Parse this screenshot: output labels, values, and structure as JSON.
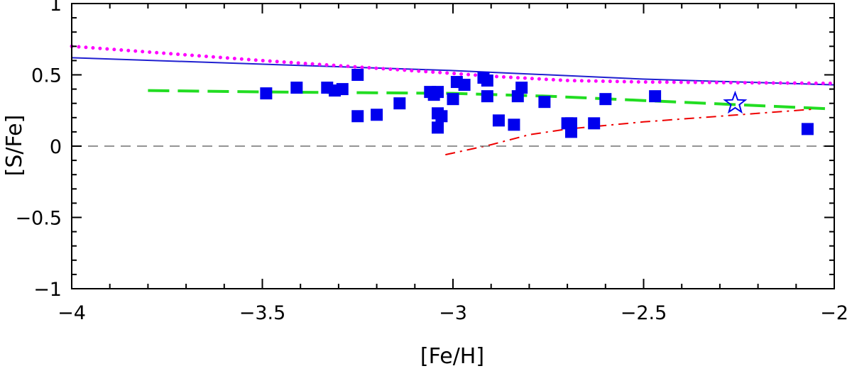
{
  "chart_data": {
    "type": "scatter",
    "title": "",
    "xlabel": "[Fe/H]",
    "ylabel": "[S/Fe]",
    "xlim": [
      -4,
      -2
    ],
    "ylim": [
      -1,
      1
    ],
    "x_ticks": [
      -4,
      -3.5,
      -3,
      -2.5,
      -2
    ],
    "x_tick_labels": [
      "−4",
      "−3.5",
      "−3",
      "−2.5",
      "−2"
    ],
    "y_ticks": [
      -1,
      -0.5,
      0,
      0.5,
      1
    ],
    "y_tick_labels": [
      "−1",
      "−0.5",
      "0",
      "0.5",
      "1"
    ],
    "grid": false,
    "legend": "none",
    "series": [
      {
        "kind": "points",
        "marker": "filled-square",
        "color": "#0000ee",
        "points": [
          [
            -3.49,
            0.37
          ],
          [
            -3.41,
            0.41
          ],
          [
            -3.33,
            0.41
          ],
          [
            -3.31,
            0.39
          ],
          [
            -3.29,
            0.4
          ],
          [
            -3.25,
            0.5
          ],
          [
            -3.25,
            0.21
          ],
          [
            -3.2,
            0.22
          ],
          [
            -3.14,
            0.3
          ],
          [
            -3.06,
            0.38
          ],
          [
            -3.05,
            0.36
          ],
          [
            -3.04,
            0.38
          ],
          [
            -3.04,
            0.23
          ],
          [
            -3.03,
            0.21
          ],
          [
            -3.04,
            0.13
          ],
          [
            -3.0,
            0.33
          ],
          [
            -2.99,
            0.45
          ],
          [
            -2.97,
            0.43
          ],
          [
            -2.92,
            0.48
          ],
          [
            -2.91,
            0.46
          ],
          [
            -2.91,
            0.35
          ],
          [
            -2.88,
            0.18
          ],
          [
            -2.84,
            0.15
          ],
          [
            -2.83,
            0.35
          ],
          [
            -2.82,
            0.41
          ],
          [
            -2.76,
            0.31
          ],
          [
            -2.7,
            0.16
          ],
          [
            -2.69,
            0.16
          ],
          [
            -2.69,
            0.1
          ],
          [
            -2.63,
            0.16
          ],
          [
            -2.6,
            0.33
          ],
          [
            -2.47,
            0.35
          ],
          [
            -2.07,
            0.12
          ]
        ]
      },
      {
        "kind": "points",
        "marker": "open-star",
        "color": "#0000ee",
        "points": [
          [
            -2.26,
            0.3
          ]
        ]
      },
      {
        "kind": "line",
        "style": "solid",
        "color": "#2020d0",
        "points": [
          [
            -4.0,
            0.62
          ],
          [
            -3.0,
            0.53
          ],
          [
            -2.5,
            0.47
          ],
          [
            -2.0,
            0.43
          ]
        ]
      },
      {
        "kind": "line",
        "style": "dotted",
        "color": "#ff00ff",
        "points": [
          [
            -4.0,
            0.7
          ],
          [
            -3.5,
            0.6
          ],
          [
            -3.0,
            0.51
          ],
          [
            -2.9,
            0.49
          ],
          [
            -2.7,
            0.46
          ],
          [
            -2.5,
            0.45
          ],
          [
            -2.0,
            0.44
          ]
        ]
      },
      {
        "kind": "line",
        "style": "long-dash",
        "color": "#22dd22",
        "points": [
          [
            -3.8,
            0.39
          ],
          [
            -3.5,
            0.38
          ],
          [
            -3.0,
            0.37
          ],
          [
            -2.75,
            0.35
          ],
          [
            -2.5,
            0.32
          ],
          [
            -2.25,
            0.29
          ],
          [
            -2.0,
            0.26
          ]
        ]
      },
      {
        "kind": "line",
        "style": "dash-dot",
        "color": "#ee0000",
        "points": [
          [
            -3.02,
            -0.06
          ],
          [
            -2.9,
            0.01
          ],
          [
            -2.8,
            0.08
          ],
          [
            -2.7,
            0.12
          ],
          [
            -2.5,
            0.17
          ],
          [
            -2.3,
            0.21
          ],
          [
            -2.05,
            0.26
          ]
        ]
      },
      {
        "kind": "line",
        "style": "dashed",
        "color": "#707070",
        "points": [
          [
            -4.0,
            0.0
          ],
          [
            -2.0,
            0.0
          ]
        ]
      }
    ]
  }
}
